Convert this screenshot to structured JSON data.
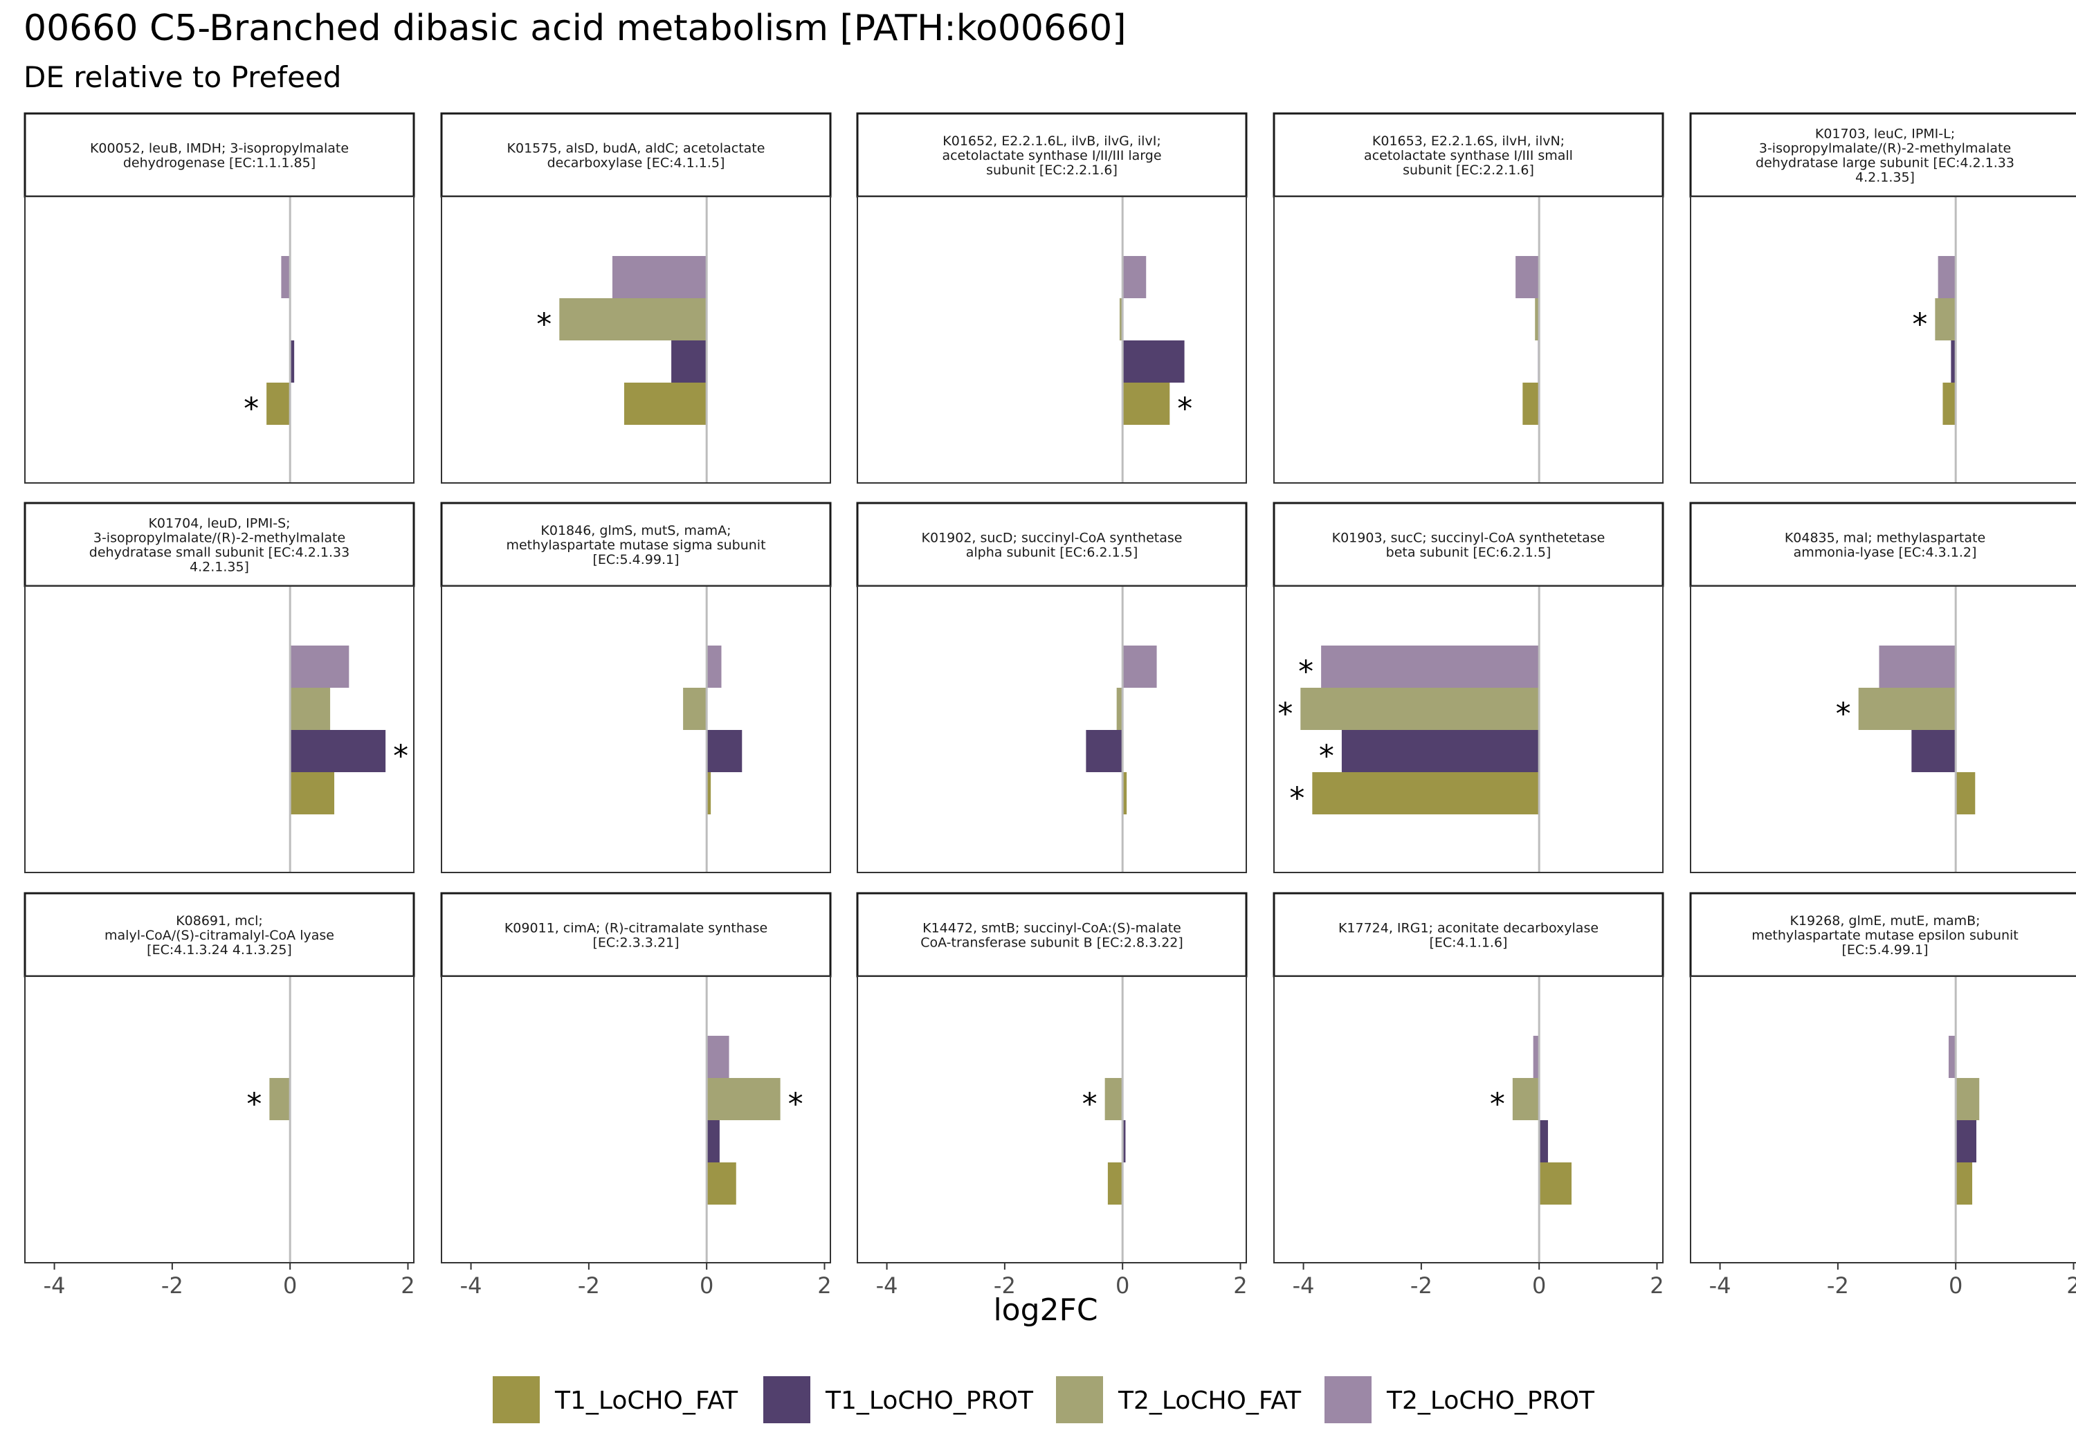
{
  "title": "00660 C5-Branched dibasic acid metabolism [PATH:ko00660]",
  "subtitle": "DE relative to Prefeed",
  "chart_data": {
    "type": "bar",
    "orientation": "horizontal",
    "facet_layout": "3x5",
    "xlabel": "log2FC",
    "ylabel": "",
    "xlim": [
      -4.5,
      2.1
    ],
    "xticks": [
      -4,
      -2,
      0,
      2
    ],
    "x_tick_labels": [
      "-4",
      "-2",
      "0",
      "2"
    ],
    "zero_line": true,
    "grid": false,
    "legend_position": "bottom",
    "series": [
      {
        "name": "T1_LoCHO_FAT",
        "color": "#9d9546"
      },
      {
        "name": "T1_LoCHO_PROT",
        "color": "#52406d"
      },
      {
        "name": "T2_LoCHO_FAT",
        "color": "#a4a474"
      },
      {
        "name": "T2_LoCHO_PROT",
        "color": "#9c88a6"
      }
    ],
    "significance_marker": "*",
    "panels": [
      {
        "title_lines": [
          "K00052, leuB, IMDH; 3-isopropylmalate",
          "dehydrogenase [EC:1.1.1.85]"
        ],
        "values": {
          "T2_LoCHO_PROT": -0.15,
          "T2_LoCHO_FAT": null,
          "T1_LoCHO_PROT": 0.07,
          "T1_LoCHO_FAT": -0.4
        },
        "significant": [
          "T1_LoCHO_FAT"
        ]
      },
      {
        "title_lines": [
          "K01575, alsD, budA, aldC; acetolactate",
          "decarboxylase [EC:4.1.1.5]"
        ],
        "values": {
          "T2_LoCHO_PROT": -1.6,
          "T2_LoCHO_FAT": -2.5,
          "T1_LoCHO_PROT": -0.6,
          "T1_LoCHO_FAT": -1.4
        },
        "significant": [
          "T2_LoCHO_FAT"
        ]
      },
      {
        "title_lines": [
          "K01652, E2.2.1.6L, ilvB, ilvG, ilvI;",
          "acetolactate synthase I/II/III large",
          "subunit [EC:2.2.1.6]"
        ],
        "values": {
          "T2_LoCHO_PROT": 0.4,
          "T2_LoCHO_FAT": -0.05,
          "T1_LoCHO_PROT": 1.05,
          "T1_LoCHO_FAT": 0.8
        },
        "significant": [
          "T1_LoCHO_FAT"
        ]
      },
      {
        "title_lines": [
          "K01653, E2.2.1.6S, ilvH, ilvN;",
          "acetolactate synthase I/III small",
          "subunit [EC:2.2.1.6]"
        ],
        "values": {
          "T2_LoCHO_PROT": -0.4,
          "T2_LoCHO_FAT": -0.07,
          "T1_LoCHO_PROT": -0.02,
          "T1_LoCHO_FAT": -0.28
        },
        "significant": []
      },
      {
        "title_lines": [
          "K01703, leuC, IPMI-L;",
          "3-isopropylmalate/(R)-2-methylmalate",
          "dehydratase large subunit [EC:4.2.1.33",
          "4.2.1.35]"
        ],
        "values": {
          "T2_LoCHO_PROT": -0.3,
          "T2_LoCHO_FAT": -0.35,
          "T1_LoCHO_PROT": -0.08,
          "T1_LoCHO_FAT": -0.22
        },
        "significant": [
          "T2_LoCHO_FAT"
        ]
      },
      {
        "title_lines": [
          "K01704, leuD, IPMI-S;",
          "3-isopropylmalate/(R)-2-methylmalate",
          "dehydratase small subunit [EC:4.2.1.33",
          "4.2.1.35]"
        ],
        "values": {
          "T2_LoCHO_PROT": 1.0,
          "T2_LoCHO_FAT": 0.68,
          "T1_LoCHO_PROT": 1.62,
          "T1_LoCHO_FAT": 0.75
        },
        "significant": [
          "T1_LoCHO_PROT"
        ]
      },
      {
        "title_lines": [
          "K01846, glmS, mutS, mamA;",
          "methylaspartate mutase sigma subunit",
          "[EC:5.4.99.1]"
        ],
        "values": {
          "T2_LoCHO_PROT": 0.25,
          "T2_LoCHO_FAT": -0.4,
          "T1_LoCHO_PROT": 0.6,
          "T1_LoCHO_FAT": 0.07
        },
        "significant": []
      },
      {
        "title_lines": [
          "K01902, sucD; succinyl-CoA synthetase",
          "alpha subunit [EC:6.2.1.5]"
        ],
        "values": {
          "T2_LoCHO_PROT": 0.58,
          "T2_LoCHO_FAT": -0.1,
          "T1_LoCHO_PROT": -0.62,
          "T1_LoCHO_FAT": 0.07
        },
        "significant": []
      },
      {
        "title_lines": [
          "K01903, sucC; succinyl-CoA synthetetase",
          "beta subunit [EC:6.2.1.5]"
        ],
        "values": {
          "T2_LoCHO_PROT": -3.7,
          "T2_LoCHO_FAT": -4.05,
          "T1_LoCHO_PROT": -3.35,
          "T1_LoCHO_FAT": -3.85
        },
        "significant": [
          "T2_LoCHO_PROT",
          "T2_LoCHO_FAT",
          "T1_LoCHO_PROT",
          "T1_LoCHO_FAT"
        ]
      },
      {
        "title_lines": [
          "K04835, mal; methylaspartate",
          "ammonia-lyase [EC:4.3.1.2]"
        ],
        "values": {
          "T2_LoCHO_PROT": -1.3,
          "T2_LoCHO_FAT": -1.65,
          "T1_LoCHO_PROT": -0.75,
          "T1_LoCHO_FAT": 0.33
        },
        "significant": [
          "T2_LoCHO_FAT"
        ]
      },
      {
        "title_lines": [
          "K08691, mcl;",
          "malyl-CoA/(S)-citramalyl-CoA lyase",
          "[EC:4.1.3.24 4.1.3.25]"
        ],
        "values": {
          "T2_LoCHO_PROT": null,
          "T2_LoCHO_FAT": -0.35,
          "T1_LoCHO_PROT": null,
          "T1_LoCHO_FAT": null
        },
        "significant": [
          "T2_LoCHO_FAT"
        ]
      },
      {
        "title_lines": [
          "K09011, cimA; (R)-citramalate synthase",
          "[EC:2.3.3.21]"
        ],
        "values": {
          "T2_LoCHO_PROT": 0.38,
          "T2_LoCHO_FAT": 1.25,
          "T1_LoCHO_PROT": 0.22,
          "T1_LoCHO_FAT": 0.5
        },
        "significant": [
          "T2_LoCHO_FAT"
        ]
      },
      {
        "title_lines": [
          "K14472, smtB; succinyl-CoA:(S)-malate",
          "CoA-transferase subunit B [EC:2.8.3.22]"
        ],
        "values": {
          "T2_LoCHO_PROT": null,
          "T2_LoCHO_FAT": -0.3,
          "T1_LoCHO_PROT": 0.05,
          "T1_LoCHO_FAT": -0.25
        },
        "significant": [
          "T2_LoCHO_FAT"
        ]
      },
      {
        "title_lines": [
          "K17724, IRG1; aconitate decarboxylase",
          "[EC:4.1.1.6]"
        ],
        "values": {
          "T2_LoCHO_PROT": -0.1,
          "T2_LoCHO_FAT": -0.45,
          "T1_LoCHO_PROT": 0.15,
          "T1_LoCHO_FAT": 0.55
        },
        "significant": [
          "T2_LoCHO_FAT"
        ]
      },
      {
        "title_lines": [
          "K19268, glmE, mutE, mamB;",
          "methylaspartate mutase epsilon subunit",
          "[EC:5.4.99.1]"
        ],
        "values": {
          "T2_LoCHO_PROT": -0.12,
          "T2_LoCHO_FAT": 0.4,
          "T1_LoCHO_PROT": 0.35,
          "T1_LoCHO_FAT": 0.28
        },
        "significant": []
      }
    ]
  }
}
